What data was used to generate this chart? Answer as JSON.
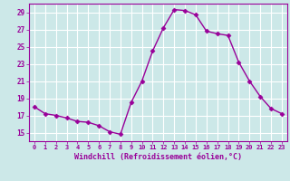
{
  "x": [
    0,
    1,
    2,
    3,
    4,
    5,
    6,
    7,
    8,
    9,
    10,
    11,
    12,
    13,
    14,
    15,
    16,
    17,
    18,
    19,
    20,
    21,
    22,
    23
  ],
  "y": [
    18.0,
    17.2,
    17.0,
    16.7,
    16.3,
    16.2,
    15.8,
    15.1,
    14.8,
    18.5,
    21.0,
    24.5,
    27.2,
    29.3,
    29.2,
    28.7,
    26.8,
    26.5,
    26.3,
    23.2,
    21.0,
    19.2,
    17.8,
    17.2
  ],
  "line_color": "#990099",
  "marker": "D",
  "marker_size": 2.5,
  "bg_color": "#cce8e8",
  "grid_color": "#ffffff",
  "xlabel": "Windchill (Refroidissement éolien,°C)",
  "xlabel_color": "#990099",
  "tick_color": "#990099",
  "ylim": [
    14.0,
    30.0
  ],
  "xlim": [
    -0.5,
    23.5
  ],
  "yticks": [
    15,
    17,
    19,
    21,
    23,
    25,
    27,
    29
  ],
  "xticks": [
    0,
    1,
    2,
    3,
    4,
    5,
    6,
    7,
    8,
    9,
    10,
    11,
    12,
    13,
    14,
    15,
    16,
    17,
    18,
    19,
    20,
    21,
    22,
    23
  ],
  "xtick_labels": [
    "0",
    "1",
    "2",
    "3",
    "4",
    "5",
    "6",
    "7",
    "8",
    "9",
    "10",
    "11",
    "12",
    "13",
    "14",
    "15",
    "16",
    "17",
    "18",
    "19",
    "20",
    "21",
    "22",
    "23"
  ],
  "ytick_labels": [
    "15",
    "17",
    "19",
    "21",
    "23",
    "25",
    "27",
    "29"
  ],
  "spine_color": "#990099",
  "linewidth": 1.0
}
